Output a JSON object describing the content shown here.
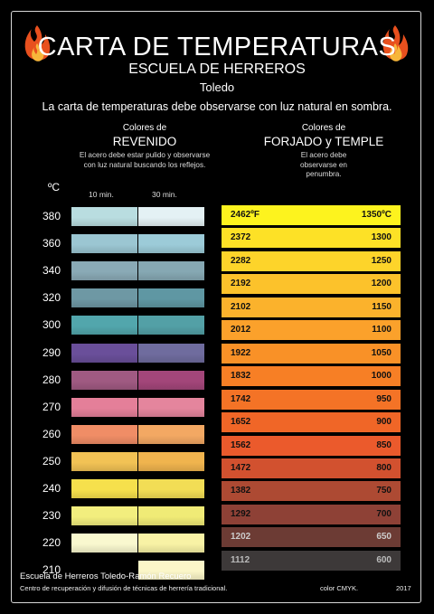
{
  "header": {
    "title": "CARTA DE TEMPERATURAS",
    "subtitle": "ESCUELA DE HERREROS",
    "city": "Toledo",
    "note": "La carta de temperaturas debe observarse con luz natural en sombra."
  },
  "revenido": {
    "heading_small": "Colores de",
    "heading": "REVENIDO",
    "description": "El acero debe estar pulido y observarse con luz natural buscando los reflejos.",
    "unit": "ºC",
    "time_a": "10 min.",
    "time_b": "30 min.",
    "rows": [
      {
        "temp": "380",
        "c10": "#b9dde0",
        "c30": "#e4f1f4"
      },
      {
        "temp": "360",
        "c10": "#9bc6d2",
        "c30": "#9ccbd8"
      },
      {
        "temp": "340",
        "c10": "#8aaab6",
        "c30": "#86a8b3"
      },
      {
        "temp": "320",
        "c10": "#6e98a4",
        "c30": "#5f97a3"
      },
      {
        "temp": "300",
        "c10": "#52a6ac",
        "c30": "#53a0a6"
      },
      {
        "temp": "290",
        "c10": "#6a4f9a",
        "c30": "#6f6c9e"
      },
      {
        "temp": "280",
        "c10": "#a05a82",
        "c30": "#a3467a"
      },
      {
        "temp": "270",
        "c10": "#e47f99",
        "c30": "#e4859d"
      },
      {
        "temp": "260",
        "c10": "#f08d66",
        "c30": "#f3a863"
      },
      {
        "temp": "250",
        "c10": "#f2c255",
        "c30": "#f0b44e"
      },
      {
        "temp": "240",
        "c10": "#f6e04c",
        "c30": "#f2dd55"
      },
      {
        "temp": "230",
        "c10": "#f2ee7e",
        "c30": "#f0eb76"
      },
      {
        "temp": "220",
        "c10": "#f9f8cf",
        "c30": "#f8f2a5"
      },
      {
        "temp": "210",
        "c10": "",
        "c30": "#fbf6c8"
      }
    ]
  },
  "forjado": {
    "heading_small": "Colores de",
    "heading": "FORJADO y TEMPLE",
    "description": "El acero debe observarse en penumbra.",
    "rows": [
      {
        "f": "2462ºF",
        "c": "1350ºC",
        "color": "#fdf31e",
        "text": "#111111"
      },
      {
        "f": "2372",
        "c": "1300",
        "color": "#fde126",
        "text": "#111111"
      },
      {
        "f": "2282",
        "c": "1250",
        "color": "#fdd42a",
        "text": "#111111"
      },
      {
        "f": "2192",
        "c": "1200",
        "color": "#fcc22b",
        "text": "#111111"
      },
      {
        "f": "2102",
        "c": "1150",
        "color": "#fbb22c",
        "text": "#111111"
      },
      {
        "f": "2012",
        "c": "1100",
        "color": "#fba12b",
        "text": "#111111"
      },
      {
        "f": "1922",
        "c": "1050",
        "color": "#f99127",
        "text": "#111111"
      },
      {
        "f": "1832",
        "c": "1000",
        "color": "#f77f25",
        "text": "#111111"
      },
      {
        "f": "1742",
        "c": "950",
        "color": "#f47326",
        "text": "#111111"
      },
      {
        "f": "1652",
        "c": "900",
        "color": "#f06627",
        "text": "#111111"
      },
      {
        "f": "1562",
        "c": "850",
        "color": "#eb5a2c",
        "text": "#111111"
      },
      {
        "f": "1472",
        "c": "800",
        "color": "#d2512f",
        "text": "#111111"
      },
      {
        "f": "1382",
        "c": "750",
        "color": "#ad4a33",
        "text": "#111111"
      },
      {
        "f": "1292",
        "c": "700",
        "color": "#8e4136",
        "text": "#111111"
      },
      {
        "f": "1202",
        "c": "650",
        "color": "#6c3b34",
        "text": "#cccccc"
      },
      {
        "f": "1112",
        "c": "600",
        "color": "#3d3939",
        "text": "#bbbbbb"
      }
    ]
  },
  "footer": {
    "line1": "Escuela de Herreros Toledo-Ramón Recuero",
    "line2": "Centro de recuperación y difusión de técnicas de herrería tradicional.",
    "color_note": "color CMYK.",
    "year": "2017"
  },
  "colors": {
    "flame_outer": "#e8501e",
    "flame_inner": "#f7b63a",
    "background": "#000000",
    "frame": "#d8d8d8"
  }
}
